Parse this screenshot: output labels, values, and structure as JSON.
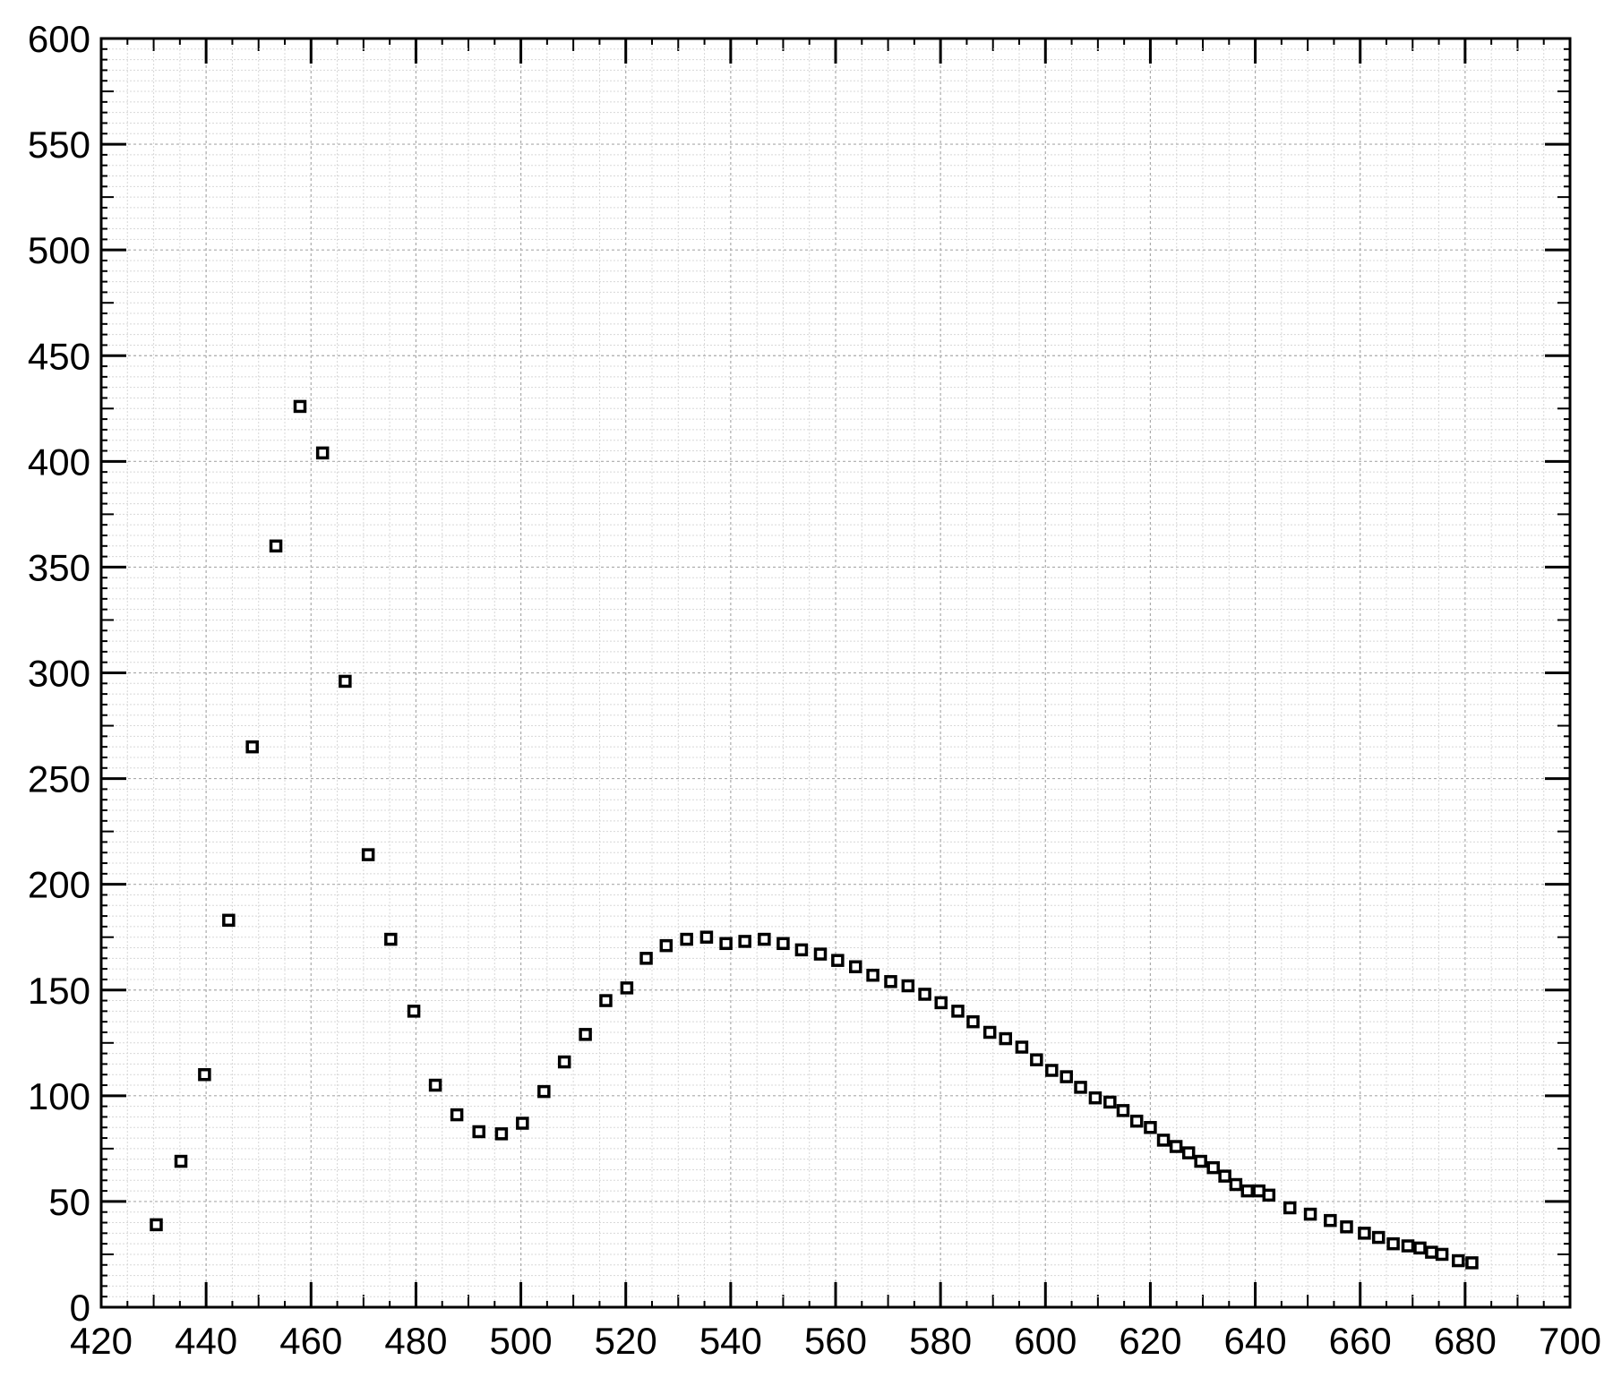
{
  "chart_data": {
    "type": "scatter",
    "marker": "square",
    "color": "#000000",
    "x": [
      430.5,
      435.2,
      439.7,
      444.3,
      448.8,
      453.3,
      457.9,
      462.2,
      466.5,
      470.9,
      475.2,
      479.6,
      483.7,
      487.8,
      492.0,
      496.3,
      500.3,
      504.4,
      508.3,
      512.3,
      516.2,
      520.2,
      523.9,
      527.7,
      531.6,
      535.4,
      539.1,
      542.7,
      546.4,
      550.0,
      553.5,
      557.1,
      560.4,
      563.8,
      567.1,
      570.5,
      573.8,
      577.0,
      580.1,
      583.3,
      586.2,
      589.4,
      592.4,
      595.5,
      598.3,
      601.2,
      604.0,
      606.7,
      609.5,
      612.3,
      614.8,
      617.4,
      620.0,
      622.5,
      624.9,
      627.3,
      629.6,
      632.0,
      634.2,
      636.3,
      638.5,
      640.7,
      642.6,
      646.6,
      650.5,
      654.3,
      657.4,
      660.8,
      663.5,
      666.3,
      669.1,
      671.4,
      673.6,
      675.6,
      678.7,
      681.3
    ],
    "values": [
      39,
      69,
      110,
      183,
      265,
      360,
      426,
      404,
      296,
      214,
      174,
      140,
      105,
      91,
      83,
      82,
      87,
      102,
      116,
      129,
      145,
      151,
      165,
      171,
      174,
      175,
      172,
      173,
      174,
      172,
      169,
      167,
      164,
      161,
      157,
      154,
      152,
      148,
      144,
      140,
      135,
      130,
      127,
      123,
      117,
      112,
      109,
      104,
      99,
      97,
      93,
      88,
      85,
      79,
      76,
      73,
      69,
      66,
      62,
      58,
      55,
      55,
      53,
      47,
      44,
      41,
      38,
      35,
      33,
      30,
      29,
      28,
      26,
      25,
      22,
      21
    ],
    "xlim": [
      420,
      700
    ],
    "xticks": [
      420,
      440,
      460,
      480,
      500,
      520,
      540,
      560,
      580,
      600,
      620,
      640,
      660,
      680,
      700
    ],
    "ylim": [
      0,
      600
    ],
    "yticks": [
      0,
      50,
      100,
      150,
      200,
      250,
      300,
      350,
      400,
      450,
      500,
      550,
      600
    ],
    "grid": true,
    "minor_grid": true
  }
}
